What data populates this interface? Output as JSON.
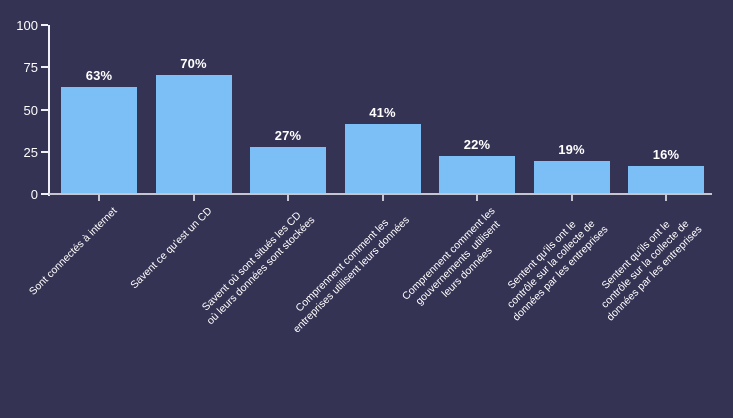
{
  "chart_data": {
    "type": "bar",
    "title": "",
    "xlabel": "",
    "ylabel": "",
    "categories": [
      "Sont connectés à internet",
      "Savent ce qu'est un CD",
      "Savent où sont situés les CD\noù leurs données sont stockées",
      "Comprennent comment les\nentreprises utilisent leurs données",
      "Comprennent comment les\ngouvernements  utilisent\nleurs données",
      "Sentent qu'ils ont le\ncontrôle sur la collecte de\ndonnées par les entreprises",
      "Sentent qu'ils ont le\ncontrôle sur la collecte de\ndonnées par les entreprises"
    ],
    "values": [
      63,
      70,
      27,
      41,
      22,
      19,
      16
    ],
    "value_labels": [
      "63%",
      "70%",
      "27%",
      "41%",
      "22%",
      "19%",
      "16%"
    ],
    "ylim": [
      0,
      100
    ],
    "yticks": [
      0,
      25,
      50,
      75,
      100
    ],
    "grid": false,
    "legend": null,
    "colors": {
      "background": "#353354",
      "bar": "#7CBFF7",
      "axis": "#EFEFF6",
      "baseline": "#C6C6D2",
      "text": "#FFFFFF"
    }
  }
}
